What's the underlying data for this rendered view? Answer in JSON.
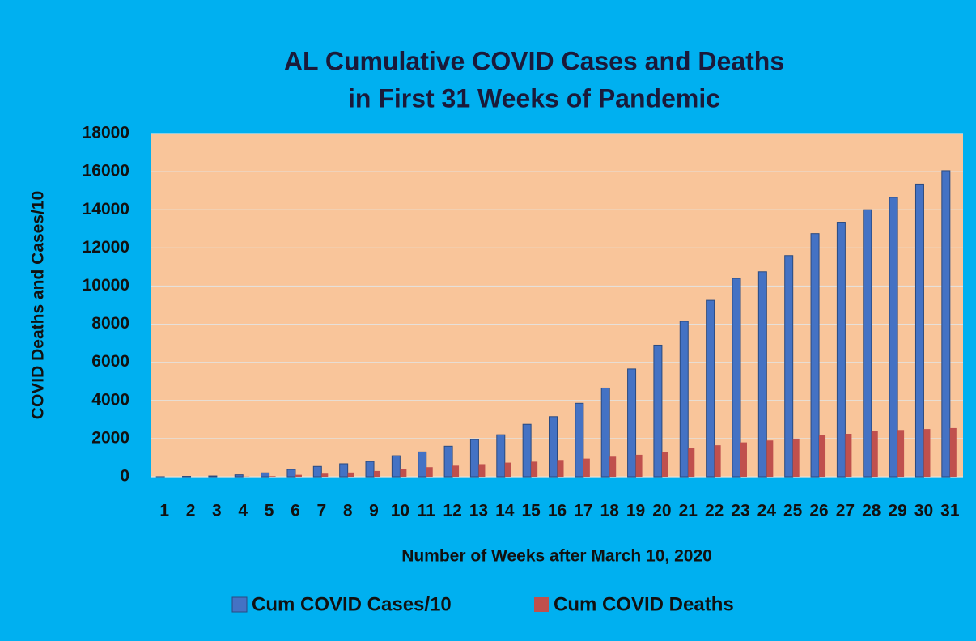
{
  "chart_data": {
    "type": "bar",
    "title": [
      "AL Cumulative COVID Cases and Deaths",
      "in First 31 Weeks of Pandemic"
    ],
    "x_label": "Number of Weeks after March 10, 2020",
    "y_label": "COVID Deaths and Cases/10",
    "categories": [
      "1",
      "2",
      "3",
      "4",
      "5",
      "6",
      "7",
      "8",
      "9",
      "10",
      "11",
      "12",
      "13",
      "14",
      "15",
      "16",
      "17",
      "18",
      "19",
      "20",
      "21",
      "22",
      "23",
      "24",
      "25",
      "26",
      "27",
      "28",
      "29",
      "30",
      "31"
    ],
    "series": [
      {
        "name": "Cum COVID Cases/10",
        "color": "#4472c4",
        "values": [
          2,
          20,
          40,
          100,
          200,
          380,
          540,
          680,
          800,
          1100,
          1300,
          1600,
          1950,
          2200,
          2750,
          3150,
          3850,
          4650,
          5650,
          6900,
          8150,
          9250,
          10400,
          10750,
          11600,
          12750,
          13350,
          14000,
          14650,
          15350,
          16050
        ]
      },
      {
        "name": "Cum COVID Deaths",
        "color": "#c0504d",
        "values": [
          0,
          0,
          0,
          10,
          30,
          100,
          160,
          220,
          300,
          420,
          500,
          580,
          660,
          740,
          790,
          880,
          950,
          1050,
          1150,
          1300,
          1500,
          1650,
          1800,
          1900,
          2000,
          2200,
          2250,
          2400,
          2450,
          2500,
          2550
        ]
      }
    ],
    "ylim": [
      0,
      18000
    ],
    "yticks": [
      0,
      2000,
      4000,
      6000,
      8000,
      10000,
      12000,
      14000,
      16000,
      18000
    ],
    "grid": true
  }
}
